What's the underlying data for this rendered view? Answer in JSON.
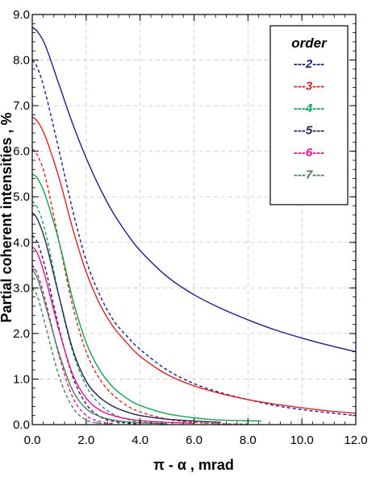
{
  "chart_data": {
    "type": "line",
    "xlabel": "π - α ,  mrad",
    "ylabel": "Partial coherent intensities , %",
    "xlim": [
      0,
      12
    ],
    "ylim": [
      0,
      9
    ],
    "x_ticks": [
      "0.0",
      "2.0",
      "4.0",
      "6.0",
      "8.0",
      "10.0",
      "12.0"
    ],
    "y_ticks": [
      "0.0",
      "1.0",
      "2.0",
      "3.0",
      "4.0",
      "5.0",
      "6.0",
      "7.0",
      "8.0",
      "9.0"
    ],
    "grid": true,
    "legend": {
      "title": "order",
      "position": "top-right"
    },
    "series": [
      {
        "name": "---2---",
        "color": "#1b1f8a",
        "style": "solid",
        "x": [
          0,
          0.2,
          0.5,
          1,
          1.5,
          2,
          2.5,
          3,
          3.5,
          4,
          5,
          6,
          7,
          8,
          9,
          10,
          11,
          12
        ],
        "y": [
          8.72,
          8.62,
          8.3,
          7.45,
          6.6,
          5.85,
          5.2,
          4.65,
          4.2,
          3.82,
          3.25,
          2.85,
          2.55,
          2.3,
          2.08,
          1.9,
          1.74,
          1.6
        ]
      },
      {
        "name": "---2---",
        "color": "#1b1f8a",
        "style": "dashed",
        "x": [
          0,
          0.2,
          0.5,
          1,
          1.5,
          2,
          2.5,
          3,
          3.5,
          4,
          5,
          6,
          7,
          8,
          9,
          10,
          11,
          12
        ],
        "y": [
          8.0,
          7.82,
          7.25,
          6.0,
          4.7,
          3.6,
          2.85,
          2.3,
          1.95,
          1.65,
          1.2,
          0.9,
          0.7,
          0.55,
          0.42,
          0.33,
          0.26,
          0.2
        ]
      },
      {
        "name": "---3---",
        "color": "#e02020",
        "style": "solid",
        "x": [
          0,
          0.2,
          0.5,
          1,
          1.5,
          2,
          2.5,
          3,
          3.5,
          4,
          5,
          6,
          7,
          8,
          9,
          10,
          11,
          12
        ],
        "y": [
          6.75,
          6.65,
          6.3,
          5.4,
          4.3,
          3.35,
          2.65,
          2.15,
          1.8,
          1.5,
          1.1,
          0.85,
          0.68,
          0.55,
          0.45,
          0.37,
          0.3,
          0.25
        ]
      },
      {
        "name": "---3---",
        "color": "#e02020",
        "style": "dashed",
        "x": [
          0,
          0.2,
          0.5,
          1,
          1.5,
          2,
          2.5,
          3,
          3.5,
          4,
          5,
          6,
          7,
          8
        ],
        "y": [
          6.05,
          5.9,
          5.4,
          4.0,
          2.6,
          1.6,
          1.0,
          0.65,
          0.42,
          0.28,
          0.12,
          0.05,
          0.02,
          0.01
        ]
      },
      {
        "name": "---4---",
        "color": "#12a050",
        "style": "solid",
        "x": [
          0,
          0.2,
          0.5,
          1,
          1.5,
          2,
          2.5,
          3,
          3.5,
          4,
          5,
          6,
          7,
          8.5
        ],
        "y": [
          5.5,
          5.4,
          5.0,
          4.0,
          2.75,
          1.8,
          1.2,
          0.82,
          0.58,
          0.42,
          0.24,
          0.15,
          0.1,
          0.08
        ]
      },
      {
        "name": "---4---",
        "color": "#12a050",
        "style": "dashed",
        "x": [
          0,
          0.2,
          0.5,
          1,
          1.5,
          2,
          2.5,
          3,
          3.5,
          4,
          5
        ],
        "y": [
          4.9,
          4.75,
          4.2,
          2.8,
          1.6,
          0.85,
          0.45,
          0.23,
          0.12,
          0.06,
          0.02
        ]
      },
      {
        "name": "---5---",
        "color": "#23234e",
        "style": "solid",
        "x": [
          0,
          0.2,
          0.5,
          1,
          1.5,
          2,
          2.5,
          3,
          3.5,
          4,
          5,
          6,
          7
        ],
        "y": [
          4.65,
          4.5,
          4.0,
          2.8,
          1.65,
          0.95,
          0.6,
          0.4,
          0.28,
          0.2,
          0.12,
          0.08,
          0.05
        ]
      },
      {
        "name": "---5---",
        "color": "#23234e",
        "style": "dashed",
        "x": [
          0,
          0.2,
          0.5,
          1,
          1.5,
          2,
          2.5,
          3,
          4
        ],
        "y": [
          4.15,
          3.98,
          3.4,
          2.1,
          1.05,
          0.45,
          0.18,
          0.07,
          0.01
        ]
      },
      {
        "name": "---6---",
        "color": "#e0109a",
        "style": "solid",
        "x": [
          0,
          0.2,
          0.5,
          1,
          1.5,
          2,
          2.5,
          3,
          3.5,
          4,
          5,
          6
        ],
        "y": [
          3.9,
          3.75,
          3.2,
          2.05,
          1.1,
          0.58,
          0.32,
          0.2,
          0.13,
          0.09,
          0.05,
          0.03
        ]
      },
      {
        "name": "---6---",
        "color": "#e0109a",
        "style": "dashed",
        "x": [
          0,
          0.2,
          0.5,
          1,
          1.5,
          2,
          2.5,
          3
        ],
        "y": [
          3.5,
          3.3,
          2.7,
          1.5,
          0.6,
          0.2,
          0.07,
          0.02
        ]
      },
      {
        "name": "---7---",
        "color": "#4a7a5a",
        "style": "solid",
        "x": [
          0,
          0.2,
          0.5,
          1,
          1.5,
          2,
          2.5,
          3,
          3.5,
          4,
          5
        ],
        "y": [
          3.4,
          3.2,
          2.6,
          1.55,
          0.75,
          0.35,
          0.18,
          0.1,
          0.06,
          0.04,
          0.02
        ]
      },
      {
        "name": "---7---",
        "color": "#4a7a5a",
        "style": "dashed",
        "x": [
          0,
          0.2,
          0.5,
          1,
          1.5,
          2,
          2.5,
          3
        ],
        "y": [
          3.0,
          2.8,
          2.15,
          1.05,
          0.38,
          0.1,
          0.03,
          0.01
        ]
      }
    ],
    "legend_entries": [
      {
        "label": "---2---",
        "color": "#1b1f8a"
      },
      {
        "label": "---3---",
        "color": "#e02020"
      },
      {
        "label": "---4---",
        "color": "#12a050"
      },
      {
        "label": "---5---",
        "color": "#23234e"
      },
      {
        "label": "---6---",
        "color": "#e0109a"
      },
      {
        "label": "---7---",
        "color": "#4a7a5a"
      }
    ]
  }
}
